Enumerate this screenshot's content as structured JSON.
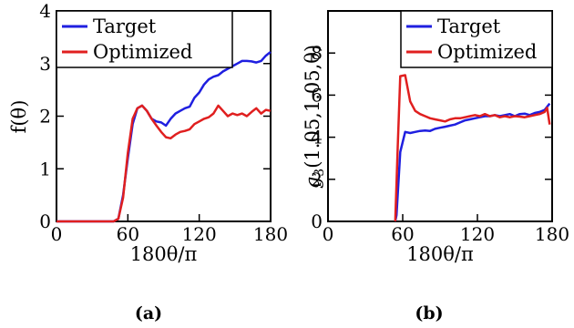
{
  "chart_data": [
    {
      "type": "line",
      "panel": "a",
      "caption": "(a)",
      "xlabel": "180θ/π",
      "ylabel": "f(θ)",
      "xlim": [
        0,
        180
      ],
      "ylim": [
        0,
        4
      ],
      "xticks": [
        "0",
        "60",
        "120",
        "180"
      ],
      "xtick_values": [
        0,
        60,
        120,
        180
      ],
      "yticks": [
        "0",
        "1",
        "2",
        "3",
        "4"
      ],
      "ytick_values": [
        0,
        1,
        2,
        3,
        4
      ],
      "grid": false,
      "legend_position": "top-right",
      "series": [
        {
          "name": "Target",
          "color": "#1f1fe0",
          "x": [
            0,
            40,
            48,
            52,
            56,
            60,
            64,
            68,
            72,
            76,
            80,
            84,
            88,
            92,
            96,
            100,
            104,
            108,
            112,
            116,
            120,
            124,
            128,
            132,
            136,
            140,
            144,
            148,
            152,
            156,
            160,
            164,
            168,
            172,
            176,
            180
          ],
          "y": [
            0,
            0,
            0,
            0.05,
            0.5,
            1.2,
            1.85,
            2.15,
            2.2,
            2.1,
            1.95,
            1.9,
            1.88,
            1.82,
            1.95,
            2.05,
            2.1,
            2.15,
            2.18,
            2.35,
            2.45,
            2.6,
            2.7,
            2.75,
            2.78,
            2.85,
            2.9,
            2.95,
            3.0,
            3.05,
            3.05,
            3.04,
            3.02,
            3.05,
            3.15,
            3.22
          ]
        },
        {
          "name": "Optimized",
          "color": "#e01f1f",
          "x": [
            0,
            40,
            48,
            52,
            56,
            60,
            64,
            68,
            72,
            76,
            80,
            84,
            88,
            92,
            96,
            100,
            104,
            108,
            112,
            116,
            120,
            124,
            128,
            132,
            136,
            140,
            144,
            148,
            152,
            156,
            160,
            164,
            168,
            172,
            176,
            180
          ],
          "y": [
            0,
            0,
            0,
            0.05,
            0.45,
            1.3,
            1.95,
            2.15,
            2.2,
            2.1,
            1.95,
            1.82,
            1.7,
            1.6,
            1.58,
            1.65,
            1.7,
            1.72,
            1.75,
            1.85,
            1.9,
            1.95,
            1.98,
            2.05,
            2.2,
            2.1,
            2.0,
            2.05,
            2.02,
            2.05,
            2.0,
            2.08,
            2.15,
            2.05,
            2.12,
            2.1
          ]
        }
      ]
    },
    {
      "type": "line",
      "panel": "b",
      "caption": "(b)",
      "xlabel": "180θ/π",
      "ylabel": "g3(1.05,1.05,θ)",
      "ylabel_main": "g",
      "ylabel_sub": "3",
      "ylabel_rest": "(1.05,1.05,θ)",
      "xlim": [
        0,
        180
      ],
      "ylim": [
        0,
        10
      ],
      "xticks": [
        "0",
        "60",
        "120",
        "180"
      ],
      "xtick_values": [
        0,
        60,
        120,
        180
      ],
      "yticks": [
        "0",
        "2",
        "4",
        "6",
        "8"
      ],
      "ytick_values": [
        0,
        2,
        4,
        6,
        8
      ],
      "grid": false,
      "legend_position": "top-right",
      "series": [
        {
          "name": "Target",
          "color": "#1f1fe0",
          "x": [
            54,
            55,
            58,
            62,
            66,
            70,
            74,
            78,
            82,
            86,
            90,
            94,
            98,
            102,
            106,
            110,
            114,
            118,
            122,
            126,
            130,
            134,
            138,
            142,
            146,
            150,
            154,
            158,
            162,
            166,
            170,
            174,
            178
          ],
          "y": [
            0,
            0.3,
            3.3,
            4.25,
            4.2,
            4.25,
            4.3,
            4.32,
            4.3,
            4.4,
            4.45,
            4.5,
            4.55,
            4.6,
            4.7,
            4.8,
            4.85,
            4.9,
            4.95,
            5.0,
            5.0,
            5.05,
            5.0,
            5.05,
            5.1,
            5.0,
            5.1,
            5.12,
            5.05,
            5.15,
            5.2,
            5.3,
            5.6
          ]
        },
        {
          "name": "Optimized",
          "color": "#e01f1f",
          "x": [
            54,
            56,
            58,
            62,
            66,
            70,
            74,
            78,
            82,
            86,
            90,
            94,
            98,
            102,
            106,
            110,
            114,
            118,
            122,
            126,
            130,
            134,
            138,
            142,
            146,
            150,
            154,
            158,
            162,
            166,
            170,
            174,
            176,
            178
          ],
          "y": [
            0,
            3.5,
            6.9,
            6.95,
            5.7,
            5.25,
            5.1,
            5.0,
            4.9,
            4.85,
            4.8,
            4.75,
            4.85,
            4.9,
            4.9,
            4.95,
            5.0,
            5.05,
            5.0,
            5.1,
            5.0,
            5.05,
            4.95,
            5.0,
            4.95,
            5.0,
            4.98,
            4.95,
            5.0,
            5.05,
            5.1,
            5.2,
            5.4,
            4.6
          ]
        }
      ]
    }
  ]
}
